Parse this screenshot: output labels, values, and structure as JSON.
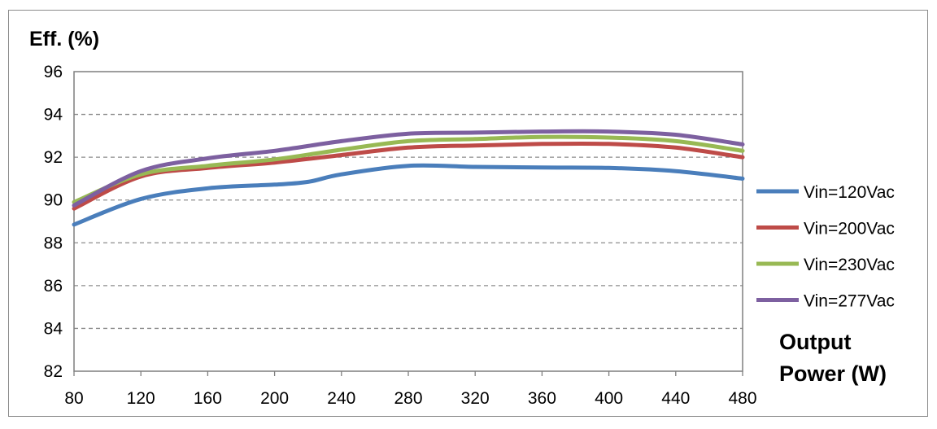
{
  "chart_data": {
    "type": "line",
    "ylabel": "Eff. (%)",
    "xlabel_lines": [
      "Output",
      "Power (W)"
    ],
    "xlim": [
      80,
      480
    ],
    "ylim": [
      82,
      96
    ],
    "x_ticks": [
      "80",
      "120",
      "160",
      "200",
      "240",
      "280",
      "320",
      "360",
      "400",
      "440",
      "480"
    ],
    "y_ticks": [
      "82",
      "84",
      "86",
      "88",
      "90",
      "92",
      "94",
      "96"
    ],
    "grid": "horizontal dashed",
    "legend_position": "right",
    "series": [
      {
        "name": "Vin=120Vac",
        "color": "#4a7ebb",
        "x": [
          80,
          120,
          160,
          200,
          220,
          240,
          280,
          320,
          360,
          400,
          440,
          480
        ],
        "y": [
          88.85,
          90.05,
          90.55,
          90.72,
          90.85,
          91.2,
          91.6,
          91.55,
          91.52,
          91.5,
          91.35,
          91.0
        ]
      },
      {
        "name": "Vin=200Vac",
        "color": "#be4b48",
        "x": [
          80,
          120,
          160,
          200,
          240,
          280,
          320,
          360,
          400,
          440,
          480
        ],
        "y": [
          89.6,
          91.1,
          91.5,
          91.75,
          92.1,
          92.45,
          92.55,
          92.62,
          92.62,
          92.45,
          92.0
        ]
      },
      {
        "name": "Vin=230Vac",
        "color": "#98b954",
        "x": [
          80,
          120,
          160,
          200,
          240,
          280,
          320,
          360,
          400,
          440,
          480
        ],
        "y": [
          89.9,
          91.2,
          91.6,
          91.9,
          92.35,
          92.75,
          92.85,
          92.95,
          92.92,
          92.75,
          92.3
        ]
      },
      {
        "name": "Vin=277Vac",
        "color": "#7d60a0",
        "x": [
          80,
          120,
          160,
          200,
          240,
          280,
          320,
          360,
          400,
          440,
          480
        ],
        "y": [
          89.75,
          91.35,
          91.95,
          92.3,
          92.75,
          93.1,
          93.15,
          93.2,
          93.2,
          93.05,
          92.6
        ]
      }
    ]
  }
}
